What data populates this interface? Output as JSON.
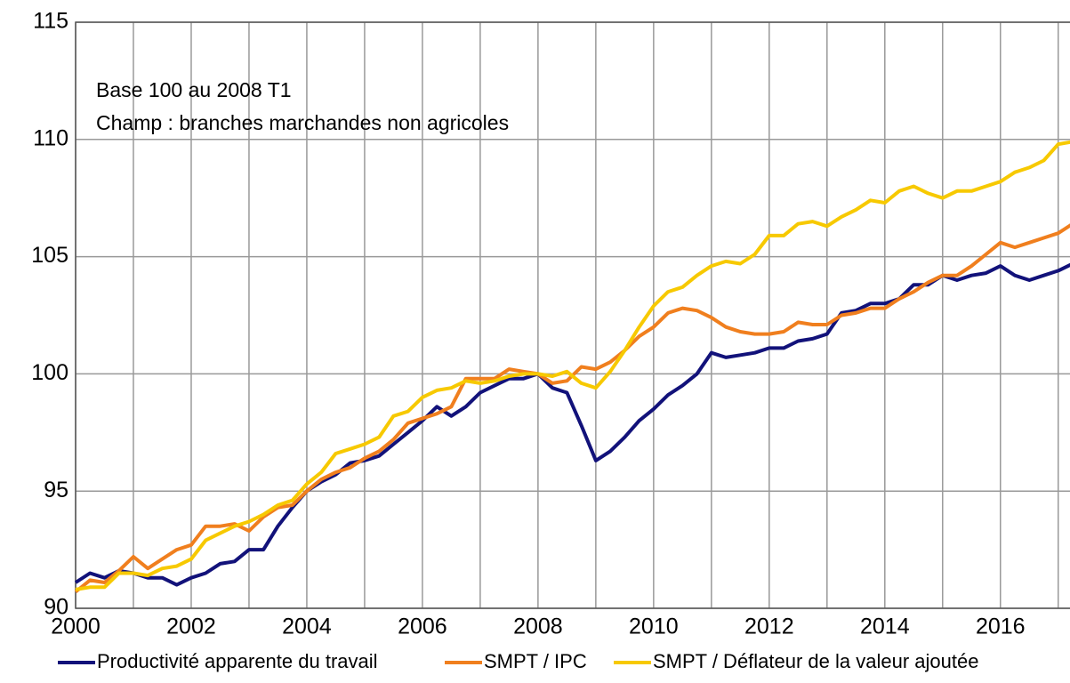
{
  "chart_data": {
    "type": "line",
    "annotations": [
      "Base 100 au 2008 T1",
      "Champ : branches marchandes non agricoles"
    ],
    "x": [
      2000,
      2000.25,
      2000.5,
      2000.75,
      2001,
      2001.25,
      2001.5,
      2001.75,
      2002,
      2002.25,
      2002.5,
      2002.75,
      2003,
      2003.25,
      2003.5,
      2003.75,
      2004,
      2004.25,
      2004.5,
      2004.75,
      2005,
      2005.25,
      2005.5,
      2005.75,
      2006,
      2006.25,
      2006.5,
      2006.75,
      2007,
      2007.25,
      2007.5,
      2007.75,
      2008,
      2008.25,
      2008.5,
      2008.75,
      2009,
      2009.25,
      2009.5,
      2009.75,
      2010,
      2010.25,
      2010.5,
      2010.75,
      2011,
      2011.25,
      2011.5,
      2011.75,
      2012,
      2012.25,
      2012.5,
      2012.75,
      2013,
      2013.25,
      2013.5,
      2013.75,
      2014,
      2014.25,
      2014.5,
      2014.75,
      2015,
      2015.25,
      2015.5,
      2015.75,
      2016,
      2016.25,
      2016.5,
      2016.75,
      2017,
      2017.25
    ],
    "series": [
      {
        "name": "Productivité apparente du travail",
        "color": "#12127a",
        "values": [
          91.1,
          91.5,
          91.3,
          91.6,
          91.5,
          91.3,
          91.3,
          91.0,
          91.3,
          91.5,
          91.9,
          92.0,
          92.5,
          92.5,
          93.5,
          94.3,
          95.0,
          95.4,
          95.7,
          96.2,
          96.3,
          96.5,
          97.0,
          97.5,
          98.0,
          98.6,
          98.2,
          98.6,
          99.2,
          99.5,
          99.8,
          99.8,
          100.0,
          99.4,
          99.2,
          97.8,
          96.3,
          96.7,
          97.3,
          98.0,
          98.5,
          99.1,
          99.5,
          100.0,
          100.9,
          100.7,
          100.8,
          100.9,
          101.1,
          101.1,
          101.4,
          101.5,
          101.7,
          102.6,
          102.7,
          103.0,
          103.0,
          103.2,
          103.8,
          103.8,
          104.2,
          104.0,
          104.2,
          104.3,
          104.6,
          104.2,
          104.0,
          104.2,
          104.4,
          104.7
        ]
      },
      {
        "name": "SMPT / IPC",
        "color": "#f07f1e",
        "values": [
          90.7,
          91.2,
          91.1,
          91.6,
          92.2,
          91.7,
          92.1,
          92.5,
          92.7,
          93.5,
          93.5,
          93.6,
          93.3,
          93.9,
          94.3,
          94.4,
          95.0,
          95.5,
          95.8,
          96.0,
          96.4,
          96.7,
          97.2,
          97.9,
          98.1,
          98.3,
          98.6,
          99.8,
          99.8,
          99.8,
          100.2,
          100.1,
          100.0,
          99.6,
          99.7,
          100.3,
          100.2,
          100.5,
          101.0,
          101.6,
          102.0,
          102.6,
          102.8,
          102.7,
          102.4,
          102.0,
          101.8,
          101.7,
          101.7,
          101.8,
          102.2,
          102.1,
          102.1,
          102.5,
          102.6,
          102.8,
          102.8,
          103.2,
          103.5,
          103.9,
          104.2,
          104.2,
          104.6,
          105.1,
          105.6,
          105.4,
          105.6,
          105.8,
          106.0,
          106.4
        ]
      },
      {
        "name": "SMPT / Déflateur de la valeur ajoutée",
        "color": "#f7c900",
        "values": [
          90.8,
          90.9,
          90.9,
          91.5,
          91.5,
          91.4,
          91.7,
          91.8,
          92.1,
          92.9,
          93.2,
          93.5,
          93.7,
          94.0,
          94.4,
          94.6,
          95.3,
          95.8,
          96.6,
          96.8,
          97.0,
          97.3,
          98.2,
          98.4,
          99.0,
          99.3,
          99.4,
          99.7,
          99.6,
          99.7,
          99.9,
          100.0,
          100.0,
          99.9,
          100.1,
          99.6,
          99.4,
          100.1,
          101.0,
          102.0,
          102.9,
          103.5,
          103.7,
          104.2,
          104.6,
          104.8,
          104.7,
          105.1,
          105.9,
          105.9,
          106.4,
          106.5,
          106.3,
          106.7,
          107.0,
          107.4,
          107.3,
          107.8,
          108.0,
          107.7,
          107.5,
          107.8,
          107.8,
          108.0,
          108.2,
          108.6,
          108.8,
          109.1,
          109.8,
          109.9
        ]
      }
    ],
    "xlim": [
      2000,
      2017.25
    ],
    "xticks": [
      2000,
      2002,
      2004,
      2006,
      2008,
      2010,
      2012,
      2014,
      2016
    ],
    "x_minor_grid": [
      2001,
      2003,
      2005,
      2007,
      2009,
      2011,
      2013,
      2015,
      2017
    ],
    "ylim": [
      90,
      115
    ],
    "yticks": [
      90,
      95,
      100,
      105,
      110,
      115
    ],
    "grid": true
  }
}
